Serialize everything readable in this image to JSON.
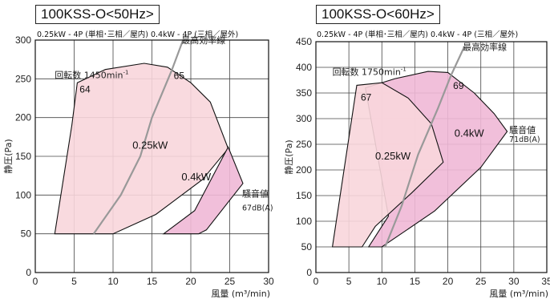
{
  "chart_data": [
    {
      "type": "area",
      "title": "100KSS-O<50Hz>",
      "subtitle": "0.25kW - 4P (単相･三相／屋内)  0.4kW - 4P (三相／屋外)",
      "xlabel": "風量 (m³/min)",
      "ylabel": "静圧(Pa)",
      "xlim": [
        0,
        30
      ],
      "ylim": [
        0,
        300
      ],
      "xticks": [
        "0",
        "5",
        "10",
        "15",
        "20",
        "25",
        "30"
      ],
      "yticks": [
        "50",
        "100",
        "150",
        "200",
        "250",
        "300"
      ],
      "grid": true,
      "series": [
        {
          "name": "0.25kW",
          "color": "#f8d6dc",
          "points": [
            [
              2.5,
              50
            ],
            [
              4.7,
              190
            ],
            [
              5.4,
              245
            ],
            [
              9,
              262
            ],
            [
              14,
              270
            ],
            [
              17,
              265
            ],
            [
              20,
              245
            ],
            [
              22.5,
              220
            ],
            [
              24.8,
              160
            ],
            [
              21.5,
              120
            ],
            [
              15.5,
              75
            ],
            [
              10,
              50
            ]
          ]
        },
        {
          "name": "0.4kW",
          "color": "#f0b8d6",
          "points": [
            [
              16.5,
              50
            ],
            [
              20.5,
              80
            ],
            [
              24.8,
              162
            ],
            [
              26.7,
              115
            ],
            [
              22,
              55
            ],
            [
              21,
              50
            ]
          ]
        }
      ],
      "efficiency_curve": {
        "label": "最高効率線",
        "points": [
          [
            7.5,
            50
          ],
          [
            11,
            100
          ],
          [
            13.5,
            150
          ],
          [
            15,
            200
          ],
          [
            17.5,
            260
          ],
          [
            19,
            300
          ]
        ],
        "color": "#999999"
      },
      "annotations": [
        {
          "text": "回転数 1450min",
          "sup": "-1",
          "x": 2.5,
          "y": 251
        },
        {
          "text": "64",
          "x": 5.7,
          "y": 232,
          "kind": "point"
        },
        {
          "text": "65",
          "x": 17.8,
          "y": 250,
          "kind": "point"
        },
        {
          "text": "0.25kW",
          "x": 12.5,
          "y": 160,
          "kind": "series"
        },
        {
          "text": "0.4kW",
          "x": 18.8,
          "y": 119,
          "kind": "series"
        },
        {
          "text": "騒音値",
          "x": 26.6,
          "y": 98,
          "kind": "note"
        },
        {
          "text": "67dB(A)",
          "x": 26.6,
          "y": 80,
          "kind": "note-small"
        }
      ]
    },
    {
      "type": "area",
      "title": "100KSS-O<60Hz>",
      "subtitle": "0.25kW - 4P (単相･三相／屋内)  0.4kW - 4P (三相／屋外)",
      "xlabel": "風量 (m³/min)",
      "ylabel": "静圧(Pa)",
      "xlim": [
        0,
        35
      ],
      "ylim": [
        0,
        450
      ],
      "xticks": [
        "0",
        "5",
        "10",
        "15",
        "20",
        "25",
        "30",
        "35"
      ],
      "yticks": [
        "50",
        "100",
        "150",
        "200",
        "250",
        "300",
        "350",
        "400",
        "450"
      ],
      "grid": true,
      "series": [
        {
          "name": "0.4kW",
          "color": "#f0b8d6",
          "points": [
            [
              7.5,
              360
            ],
            [
              12,
              378
            ],
            [
              17,
              392
            ],
            [
              20,
              390
            ],
            [
              24,
              350
            ],
            [
              27,
              310
            ],
            [
              29,
              275
            ],
            [
              25,
              205
            ],
            [
              18,
              120
            ],
            [
              10,
              50
            ],
            [
              8,
              50
            ],
            [
              11,
              110
            ]
          ]
        },
        {
          "name": "0.25kW",
          "color": "#f8d6dc",
          "points": [
            [
              2.5,
              50
            ],
            [
              6.2,
              365
            ],
            [
              10,
              370
            ],
            [
              14,
              340
            ],
            [
              17.5,
              290
            ],
            [
              19.3,
              215
            ],
            [
              14.5,
              155
            ],
            [
              9,
              90
            ],
            [
              7,
              50
            ]
          ]
        }
      ],
      "efficiency_curve": {
        "label": "最高効率線",
        "points": [
          [
            10.5,
            50
          ],
          [
            13,
            130
          ],
          [
            15.5,
            230
          ],
          [
            18.5,
            320
          ],
          [
            20.5,
            385
          ],
          [
            22.5,
            440
          ]
        ],
        "color": "#999999"
      },
      "annotations": [
        {
          "text": "回転数 1750min",
          "sup": "-1",
          "x": 2.5,
          "y": 385
        },
        {
          "text": "67",
          "x": 6.8,
          "y": 335,
          "kind": "point"
        },
        {
          "text": "69",
          "x": 20.8,
          "y": 358,
          "kind": "point"
        },
        {
          "text": "0.25kW",
          "x": 9,
          "y": 220,
          "kind": "series"
        },
        {
          "text": "0.4kW",
          "x": 21,
          "y": 265,
          "kind": "series"
        },
        {
          "text": "騒音値",
          "x": 29.3,
          "y": 272,
          "kind": "note"
        },
        {
          "text": "71dB(A)",
          "x": 29.3,
          "y": 255,
          "kind": "note-small"
        }
      ]
    }
  ]
}
